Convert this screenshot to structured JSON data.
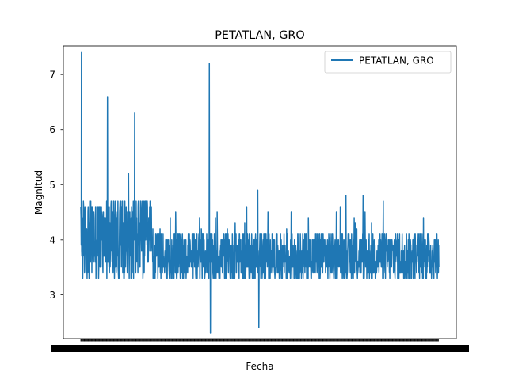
{
  "chart_data": {
    "type": "line",
    "title": "PETATLAN, GRO",
    "xlabel": "Fecha",
    "ylabel": "Magnitud",
    "ylim": [
      2.2,
      7.52
    ],
    "yticks": [
      3,
      4,
      5,
      6,
      7
    ],
    "xtick_labels_note": "",
    "grid": false,
    "legend_position": "top-right",
    "series": [
      {
        "name": "PETATLAN, GRO",
        "color": "#1f77b4",
        "x_count": 1650,
        "y_min": 2.3,
        "y_max": 7.4,
        "y_mean": 3.75
      }
    ],
    "peaks": [
      {
        "index": 3,
        "value": 7.4
      },
      {
        "index": 123,
        "value": 6.6
      },
      {
        "index": 248,
        "value": 6.3
      },
      {
        "index": 592,
        "value": 7.2
      },
      {
        "index": 597,
        "value": 2.3
      },
      {
        "index": 820,
        "value": 2.4
      }
    ]
  }
}
